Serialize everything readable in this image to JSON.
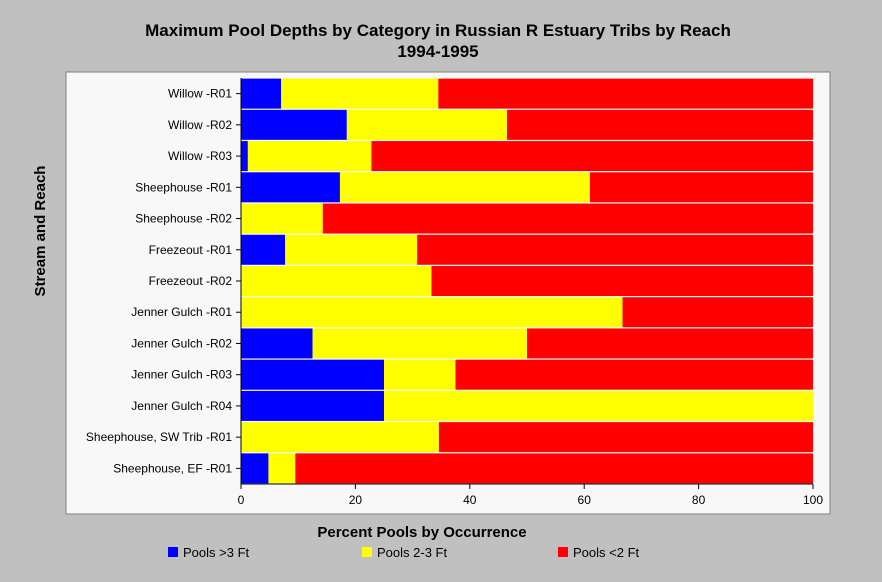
{
  "chart_data": {
    "type": "bar",
    "orientation": "horizontal",
    "stacked": true,
    "title": "Maximum Pool Depths by Category in Russian R Estuary Tribs by Reach",
    "subtitle": "1994-1995",
    "xlabel": "Percent Pools by Occurrence",
    "ylabel": "Stream and Reach",
    "xlim": [
      0,
      100
    ],
    "xticks": [
      0,
      20,
      40,
      60,
      80,
      100
    ],
    "grid": false,
    "legend_position": "bottom",
    "categories": [
      "Willow -R01",
      "Willow -R02",
      "Willow -R03",
      "Sheephouse -R01",
      "Sheephouse -R02",
      "Freezeout -R01",
      "Freezeout -R02",
      "Jenner Gulch -R01",
      "Jenner Gulch -R02",
      "Jenner Gulch -R03",
      "Jenner Gulch -R04",
      "Sheephouse, SW Trib -R01",
      "Sheephouse, EF -R01"
    ],
    "series": [
      {
        "name": "Pools >3 Ft",
        "color": "#0000ff",
        "values": [
          7,
          18.5,
          1.2,
          17.3,
          0,
          7.7,
          0,
          0,
          12.5,
          25,
          25,
          0,
          4.8
        ]
      },
      {
        "name": "Pools 2-3 Ft",
        "color": "#ffff00",
        "values": [
          27.5,
          28,
          21.6,
          43.7,
          14.3,
          23.1,
          33.3,
          66.7,
          37.5,
          12.5,
          75,
          34.6,
          4.7
        ]
      },
      {
        "name": "Pools <2 Ft",
        "color": "#ff0000",
        "values": [
          65.5,
          53.5,
          77.2,
          39,
          85.7,
          69.2,
          66.7,
          33.3,
          50,
          62.5,
          0,
          65.4,
          90.5
        ]
      }
    ]
  }
}
